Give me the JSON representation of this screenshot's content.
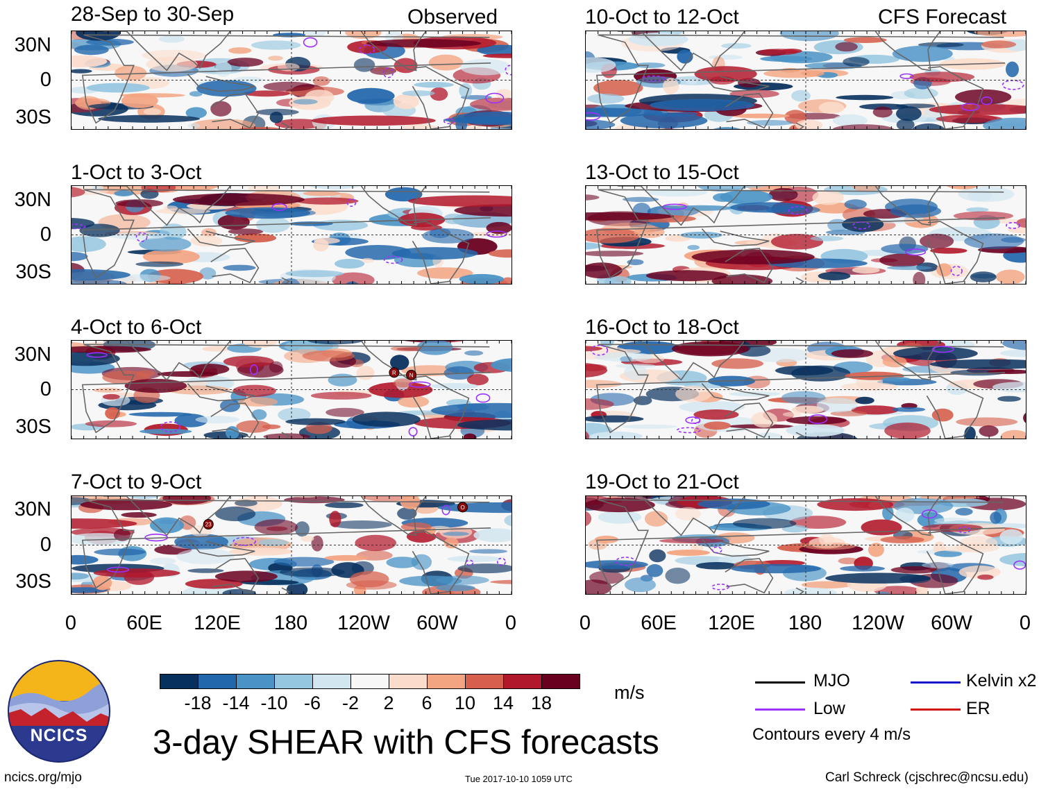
{
  "headers": {
    "observed": "Observed",
    "forecast": "CFS Forecast"
  },
  "panels_left": [
    {
      "title": "28-Sep to 30-Sep"
    },
    {
      "title": "1-Oct to 3-Oct"
    },
    {
      "title": "4-Oct to 6-Oct"
    },
    {
      "title": "7-Oct to 9-Oct"
    }
  ],
  "panels_right": [
    {
      "title": "10-Oct to 12-Oct"
    },
    {
      "title": "13-Oct to 15-Oct"
    },
    {
      "title": "16-Oct to 18-Oct"
    },
    {
      "title": "19-Oct to 21-Oct"
    }
  ],
  "ylabels": [
    "30N",
    "0",
    "30S"
  ],
  "xlabels": [
    "0",
    "60E",
    "120E",
    "180",
    "120W",
    "60W",
    "0"
  ],
  "storm_markers": [
    {
      "panel": 2,
      "label": "R",
      "lon": 264,
      "lat": 14
    },
    {
      "panel": 2,
      "label": "N",
      "lon": 278,
      "lat": 12
    },
    {
      "panel": 3,
      "label": "23",
      "lon": 112,
      "lat": 17
    },
    {
      "panel": 3,
      "label": "O",
      "lon": 320,
      "lat": 31
    }
  ],
  "colorbar": {
    "colors": [
      "#08305e",
      "#2266ab",
      "#4a93c6",
      "#95c6df",
      "#d2e6f0",
      "#f7f7f7",
      "#fbdccb",
      "#f3a481",
      "#d6604d",
      "#b2182b",
      "#6a0020"
    ],
    "ticks": [
      "-18",
      "-14",
      "-10",
      "-6",
      "-2",
      "2",
      "6",
      "10",
      "14",
      "18"
    ],
    "units": "m/s"
  },
  "legend": {
    "mjo": "MJO",
    "low": "Low",
    "kelvin": "Kelvin x2",
    "er": "ER",
    "contours": "Contours every 4 m/s",
    "colors": {
      "mjo": "#000000",
      "low": "#9b30ff",
      "kelvin": "#1414c8",
      "er": "#d01010"
    }
  },
  "logo": {
    "text": "NCICS"
  },
  "main_title": "3-day SHEAR with CFS forecasts",
  "footer": {
    "url": "ncics.org/mjo",
    "timestamp": "Tue 2017-10-10 1059 UTC",
    "credit": "Carl Schreck (cjschrec@ncsu.edu)"
  },
  "chart_data": {
    "type": "heatmap",
    "title": "3-day SHEAR with CFS forecasts",
    "variable": "vertical wind shear anomaly",
    "units": "m/s",
    "contour_levels": [
      -18,
      -14,
      -10,
      -6,
      -2,
      2,
      6,
      10,
      14,
      18
    ],
    "x_axis": {
      "ticks": [
        "0",
        "60E",
        "120E",
        "180",
        "120W",
        "60W",
        "0"
      ],
      "range_deg": [
        0,
        360
      ]
    },
    "y_axis": {
      "ticks": [
        "30N",
        "0",
        "30S"
      ],
      "range_deg": [
        -40,
        40
      ]
    },
    "overlay_contours": "Contours every 4 m/s",
    "panels": [
      {
        "title": "28-Sep to 30-Sep",
        "source": "Observed"
      },
      {
        "title": "1-Oct to 3-Oct",
        "source": "Observed"
      },
      {
        "title": "4-Oct to 6-Oct",
        "source": "Observed"
      },
      {
        "title": "7-Oct to 9-Oct",
        "source": "Observed"
      },
      {
        "title": "10-Oct to 12-Oct",
        "source": "CFS Forecast"
      },
      {
        "title": "13-Oct to 15-Oct",
        "source": "CFS Forecast"
      },
      {
        "title": "16-Oct to 18-Oct",
        "source": "CFS Forecast"
      },
      {
        "title": "19-Oct to 21-Oct",
        "source": "CFS Forecast"
      }
    ]
  }
}
